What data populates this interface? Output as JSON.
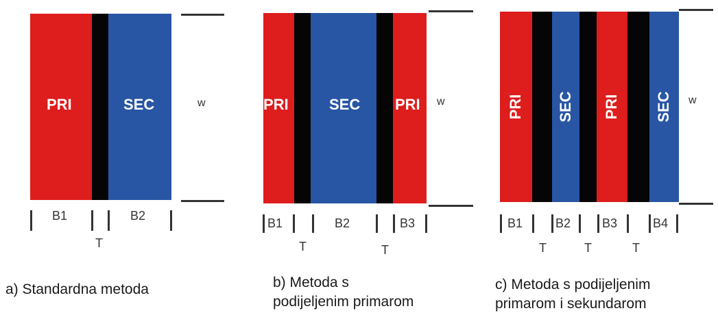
{
  "colors": {
    "primary": "#de1d1d",
    "separator": "#050505",
    "secondary": "#2856a4"
  },
  "panel_a": {
    "pri": "PRI",
    "sec": "SEC",
    "w": "w",
    "b1": "B1",
    "b2": "B2",
    "t": "T",
    "caption": "a) Standardna metoda"
  },
  "panel_b": {
    "pri1": "PRI",
    "sec": "SEC",
    "pri2": "PRI",
    "w": "w",
    "b1": "B1",
    "b2": "B2",
    "b3": "B3",
    "t1": "T",
    "t2": "T",
    "caption_line1": "b) Metoda s",
    "caption_line2": "podijeljenim primarom"
  },
  "panel_c": {
    "pri1": "PRI",
    "sec1": "SEC",
    "pri2": "PRI",
    "sec2": "SEC",
    "w": "w",
    "b1": "B1",
    "b2": "B2",
    "b3": "B3",
    "b4": "B4",
    "t1": "T",
    "t2": "T",
    "t3": "T",
    "caption_line1": "c) Metoda s podijeljenim",
    "caption_line2": "primarom i sekundarom"
  }
}
